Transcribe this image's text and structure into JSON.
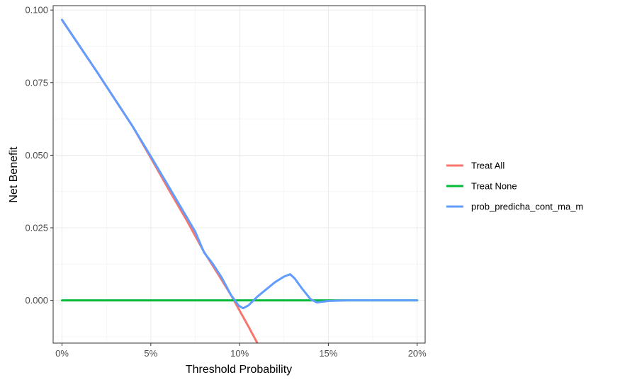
{
  "chart_data": {
    "type": "line",
    "xlabel": "Threshold Probability",
    "ylabel": "Net Benefit",
    "xlim": [
      -0.005,
      0.2045
    ],
    "ylim": [
      -0.0147,
      0.1015
    ],
    "x_ticks": [
      0,
      0.05,
      0.1,
      0.15,
      0.2
    ],
    "x_tick_labels": [
      "0%",
      "5%",
      "10%",
      "15%",
      "20%"
    ],
    "y_ticks": [
      0.0,
      0.025,
      0.05,
      0.075,
      0.1
    ],
    "y_tick_labels": [
      "0.000",
      "0.025",
      "0.050",
      "0.075",
      "0.100"
    ],
    "grid": true,
    "legend_position": "right",
    "series": [
      {
        "name": "Treat All",
        "color": "#F8766D",
        "points": [
          [
            0.0,
            0.0966
          ],
          [
            0.02,
            0.0784
          ],
          [
            0.04,
            0.0597
          ],
          [
            0.05,
            0.0491
          ],
          [
            0.06,
            0.0383
          ],
          [
            0.07,
            0.0278
          ],
          [
            0.08,
            0.0167
          ],
          [
            0.09,
            0.007
          ],
          [
            0.095,
            0.002
          ],
          [
            0.1,
            -0.0035
          ],
          [
            0.105,
            -0.009
          ],
          [
            0.11,
            -0.0147
          ]
        ]
      },
      {
        "name": "Treat None",
        "color": "#00BA38",
        "points": [
          [
            0.0,
            0.0
          ],
          [
            0.2,
            0.0
          ]
        ]
      },
      {
        "name": "prob_predicha_cont_ma_m",
        "color": "#619CFF",
        "points": [
          [
            0.0,
            0.0966
          ],
          [
            0.02,
            0.0784
          ],
          [
            0.04,
            0.0597
          ],
          [
            0.05,
            0.0496
          ],
          [
            0.06,
            0.0393
          ],
          [
            0.07,
            0.0289
          ],
          [
            0.075,
            0.0237
          ],
          [
            0.08,
            0.0165
          ],
          [
            0.085,
            0.0125
          ],
          [
            0.09,
            0.0078
          ],
          [
            0.095,
            0.002
          ],
          [
            0.0995,
            -0.0018
          ],
          [
            0.102,
            -0.0027
          ],
          [
            0.105,
            -0.0017
          ],
          [
            0.11,
            0.0013
          ],
          [
            0.115,
            0.0038
          ],
          [
            0.12,
            0.0063
          ],
          [
            0.125,
            0.0082
          ],
          [
            0.1285,
            0.009
          ],
          [
            0.131,
            0.0076
          ],
          [
            0.135,
            0.0042
          ],
          [
            0.14,
            0.0004
          ],
          [
            0.1435,
            -0.0007
          ],
          [
            0.15,
            -0.0002
          ],
          [
            0.16,
            0.0
          ],
          [
            0.2,
            0.0
          ]
        ]
      }
    ]
  }
}
